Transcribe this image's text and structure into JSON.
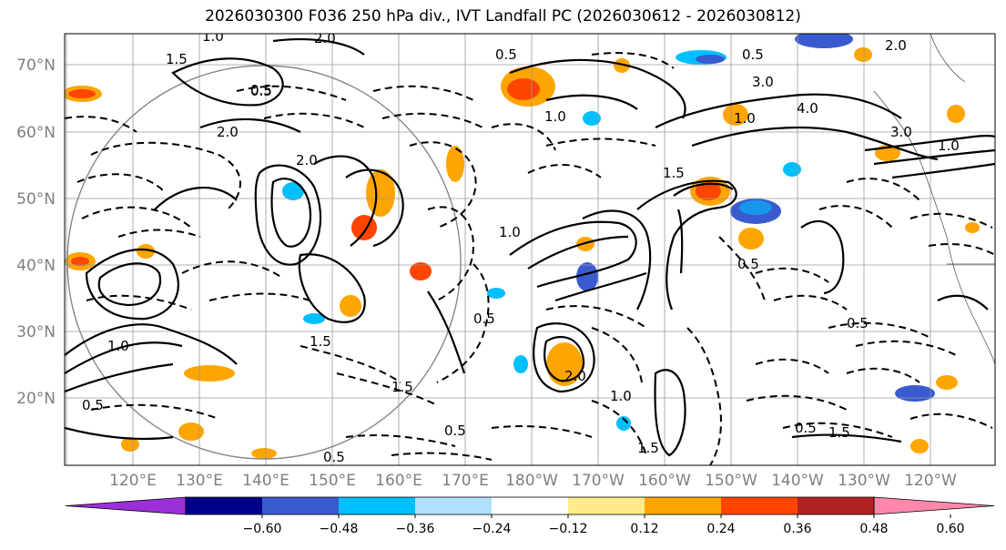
{
  "title": "2026030300 F036 250 hPa div., IVT Landfall PC (2026030612 - 2026030812)",
  "lat_labels": [
    "70°N",
    "60°N",
    "50°N",
    "40°N",
    "30°N",
    "20°N"
  ],
  "lon_labels": [
    "120°E",
    "130°E",
    "140°E",
    "150°E",
    "160°E",
    "170°E",
    "180°W",
    "170°W",
    "160°W",
    "150°W",
    "140°W",
    "130°W",
    "120°W"
  ],
  "colorbar": {
    "colors": [
      "#9b30d9",
      "#00008b",
      "#3a5bd0",
      "#00bfff",
      "#b0e2ff",
      "#ffffff",
      "#ffeb8a",
      "#ffa500",
      "#ff4500",
      "#b22222",
      "#ff88aa"
    ],
    "tick_labels": [
      "−0.60",
      "−0.48",
      "−0.36",
      "−0.24",
      "−0.12",
      "0.12",
      "0.24",
      "0.36",
      "0.48",
      "0.60"
    ]
  },
  "contour_labels": [
    "1.0",
    "2.0",
    "1.5",
    "3.0",
    "4.0",
    "0.5",
    "1.0",
    "2.0",
    "1.5",
    "2.0",
    "1.0",
    "0.5",
    "3.0",
    "0.5",
    "1.5",
    "1.5",
    "1.0",
    "2.0",
    "1.0",
    "0.5",
    "1.5",
    "0.5",
    "0.5",
    "1.5",
    "1.0",
    "0.5",
    "0.5",
    "0.5",
    "2.0",
    "0.5",
    "1.0",
    "0.5"
  ],
  "map_features": {
    "fill_colors": {
      "neg_strong": "#3a5bd0",
      "neg": "#00bfff",
      "pos_weak": "#ffeb8a",
      "pos": "#ffa500",
      "pos_strong": "#ff4500"
    },
    "grid_color": "#999999",
    "circle_color": "#888888"
  }
}
